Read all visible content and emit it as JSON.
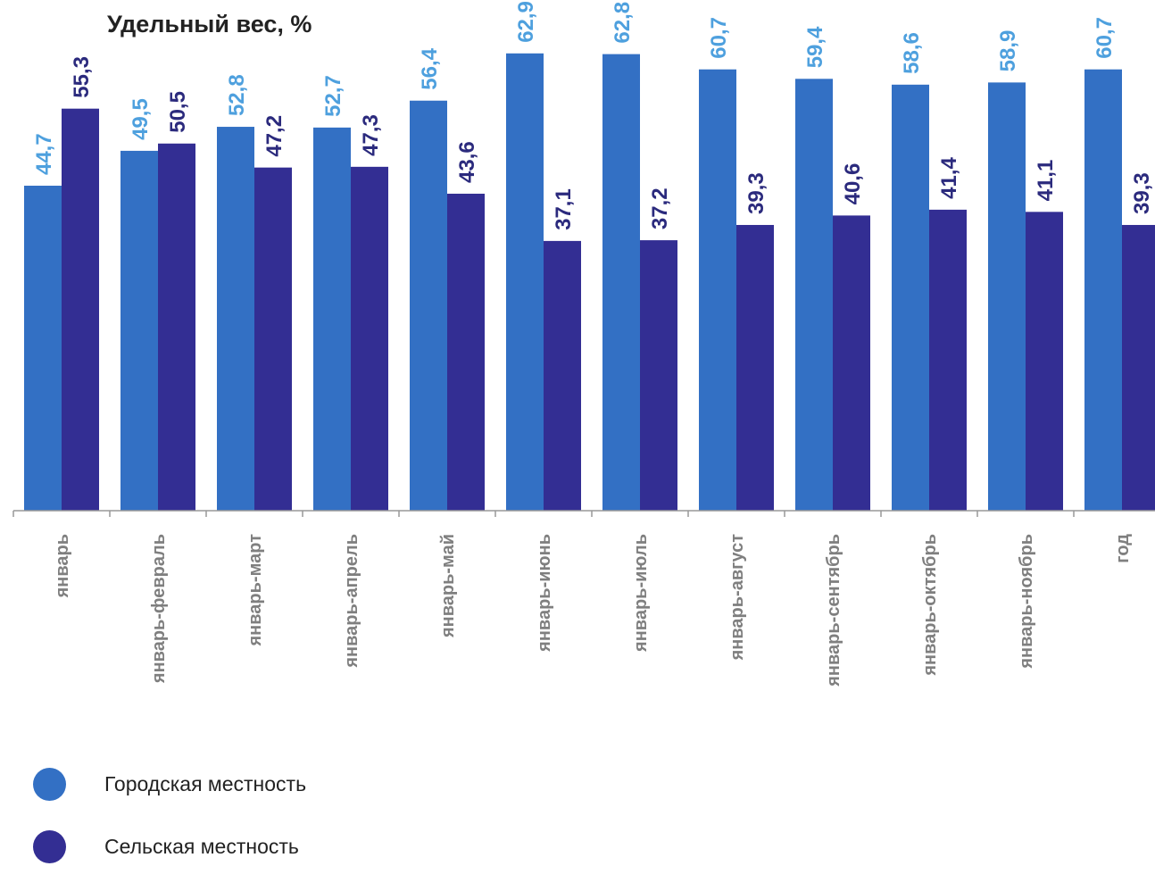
{
  "chart_data": {
    "type": "bar",
    "title": "Удельный вес, %",
    "xlabel": "",
    "ylabel": "",
    "ylim": [
      0,
      70
    ],
    "grid": false,
    "legend_position": "bottom-left",
    "categories": [
      "январь",
      "январь-февраль",
      "январь-март",
      "январь-апрель",
      "январь-май",
      "январь-июнь",
      "январь-июль",
      "январь-август",
      "январь-сентябрь",
      "январь-октябрь",
      "январь-ноябрь",
      "год"
    ],
    "series": [
      {
        "name": "Городская местность",
        "color": "#3370C4",
        "label_color": "#4EA0DE",
        "values": [
          44.7,
          49.5,
          52.8,
          52.7,
          56.4,
          62.9,
          62.8,
          60.7,
          59.4,
          58.6,
          58.9,
          60.7
        ],
        "labels": [
          "44,7",
          "49,5",
          "52,8",
          "52,7",
          "56,4",
          "62,9",
          "62,8",
          "60,7",
          "59,4",
          "58,6",
          "58,9",
          "60,7"
        ]
      },
      {
        "name": "Сельская местность",
        "color": "#332E93",
        "label_color": "#2B2A7D",
        "values": [
          55.3,
          50.5,
          47.2,
          47.3,
          43.6,
          37.1,
          37.2,
          39.3,
          40.6,
          41.4,
          41.1,
          39.3
        ],
        "labels": [
          "55,3",
          "50,5",
          "47,2",
          "47,3",
          "43,6",
          "37,1",
          "37,2",
          "39,3",
          "40,6",
          "41,4",
          "41,1",
          "39,3"
        ]
      }
    ]
  },
  "legend": {
    "items": [
      {
        "label": "Городская местность",
        "color": "#3370C4"
      },
      {
        "label": "Сельская местность",
        "color": "#332E93"
      }
    ]
  }
}
